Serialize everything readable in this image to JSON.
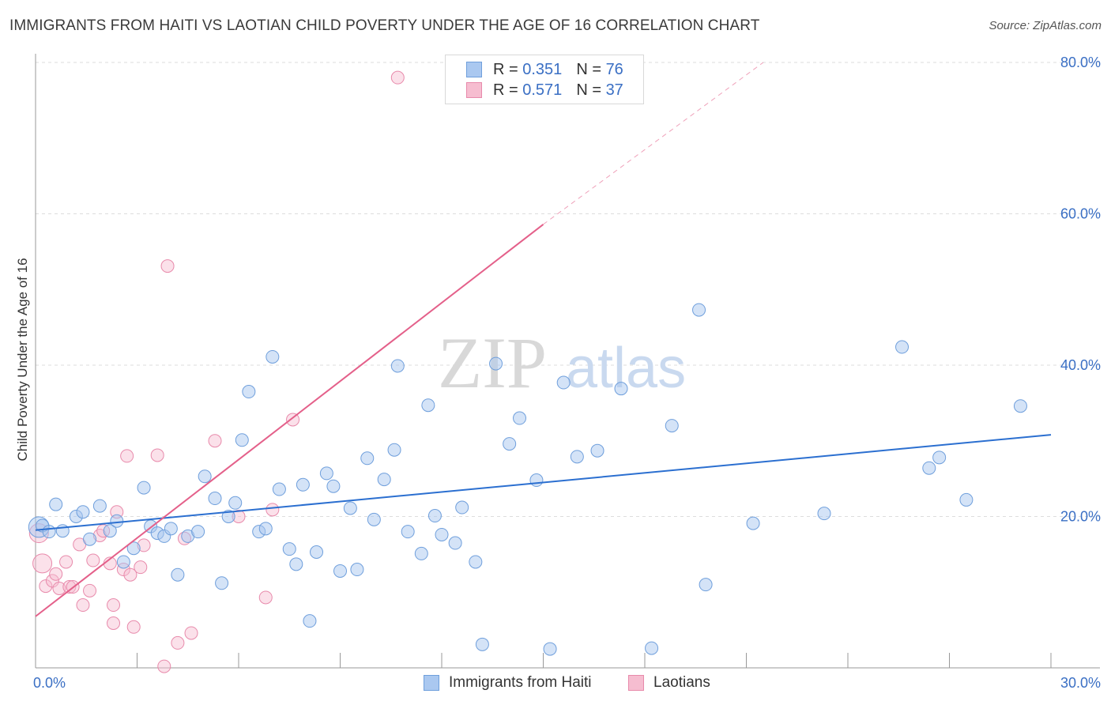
{
  "title": "IMMIGRANTS FROM HAITI VS LAOTIAN CHILD POVERTY UNDER THE AGE OF 16 CORRELATION CHART",
  "source": "Source: ZipAtlas.com",
  "watermark": {
    "zip": "ZIP",
    "atlas": "atlas"
  },
  "colors": {
    "haiti_fill": "#aac8f0",
    "haiti_stroke": "#6f9fdc",
    "haiti_line": "#2b6fd0",
    "laos_fill": "#f6bdd0",
    "laos_stroke": "#e88aab",
    "laos_line": "#e4608a",
    "tick_label": "#3a6fc4",
    "grid": "#dddddd"
  },
  "legend": {
    "haiti": {
      "r_label": "R = ",
      "r_value": "0.351",
      "n_label": "N = ",
      "n_value": "76"
    },
    "laos": {
      "r_label": "R = ",
      "r_value": "0.571",
      "n_label": "N = ",
      "n_value": "37"
    }
  },
  "bottom_legend": {
    "haiti": "Immigrants from Haiti",
    "laos": "Laotians"
  },
  "chart_data": {
    "type": "scatter",
    "title": "IMMIGRANTS FROM HAITI VS LAOTIAN CHILD POVERTY UNDER THE AGE OF 16 CORRELATION CHART",
    "xlabel": "",
    "ylabel": "Child Poverty Under the Age of 16",
    "xlim": [
      0,
      30
    ],
    "ylim": [
      0,
      80
    ],
    "x_tick_labels": [
      "0.0%",
      "30.0%"
    ],
    "y_ticks": [
      20,
      40,
      60,
      80
    ],
    "y_tick_labels": [
      "20.0%",
      "40.0%",
      "60.0%",
      "80.0%"
    ],
    "grid": "horizontal dashed",
    "legend_position": "top-center",
    "series": [
      {
        "name": "Immigrants from Haiti",
        "R": 0.351,
        "N": 76,
        "trend": {
          "x": [
            0,
            30
          ],
          "y": [
            18.2,
            30.8
          ]
        },
        "points": [
          [
            0.1,
            18.6
          ],
          [
            0.2,
            18.8
          ],
          [
            0.4,
            18
          ],
          [
            0.6,
            21.6
          ],
          [
            0.8,
            18.1
          ],
          [
            1.2,
            20
          ],
          [
            1.4,
            20.6
          ],
          [
            1.6,
            17
          ],
          [
            1.9,
            21.4
          ],
          [
            2.2,
            18.1
          ],
          [
            2.4,
            19.4
          ],
          [
            2.6,
            14
          ],
          [
            2.9,
            15.8
          ],
          [
            3.2,
            23.8
          ],
          [
            3.4,
            18.7
          ],
          [
            3.6,
            17.8
          ],
          [
            3.8,
            17.4
          ],
          [
            4,
            18.4
          ],
          [
            4.2,
            12.3
          ],
          [
            4.5,
            17.4
          ],
          [
            4.8,
            18
          ],
          [
            5,
            25.3
          ],
          [
            5.3,
            22.4
          ],
          [
            5.5,
            11.2
          ],
          [
            5.7,
            20
          ],
          [
            5.9,
            21.8
          ],
          [
            6.1,
            30.1
          ],
          [
            6.3,
            36.5
          ],
          [
            6.6,
            18
          ],
          [
            6.8,
            18.4
          ],
          [
            7,
            41.1
          ],
          [
            7.2,
            23.6
          ],
          [
            7.5,
            15.7
          ],
          [
            7.7,
            13.7
          ],
          [
            7.9,
            24.2
          ],
          [
            8.1,
            6.2
          ],
          [
            8.3,
            15.3
          ],
          [
            8.6,
            25.7
          ],
          [
            8.8,
            24
          ],
          [
            9,
            12.8
          ],
          [
            9.3,
            21.1
          ],
          [
            9.5,
            13
          ],
          [
            9.8,
            27.7
          ],
          [
            10,
            19.6
          ],
          [
            10.3,
            24.9
          ],
          [
            10.6,
            28.8
          ],
          [
            10.7,
            39.9
          ],
          [
            11,
            18
          ],
          [
            11.4,
            15.1
          ],
          [
            11.6,
            34.7
          ],
          [
            11.8,
            20.1
          ],
          [
            12,
            17.6
          ],
          [
            12.4,
            16.5
          ],
          [
            12.6,
            21.2
          ],
          [
            13,
            14
          ],
          [
            13.2,
            3.1
          ],
          [
            13.6,
            40.2
          ],
          [
            14,
            29.6
          ],
          [
            14.3,
            33
          ],
          [
            14.8,
            24.8
          ],
          [
            15.2,
            2.5
          ],
          [
            15.6,
            37.7
          ],
          [
            16,
            27.9
          ],
          [
            16.6,
            28.7
          ],
          [
            17.3,
            36.9
          ],
          [
            18.2,
            2.6
          ],
          [
            18.8,
            32
          ],
          [
            19.6,
            47.3
          ],
          [
            19.8,
            11
          ],
          [
            21.2,
            19.1
          ],
          [
            23.3,
            20.4
          ],
          [
            25.6,
            42.4
          ],
          [
            26.4,
            26.4
          ],
          [
            26.7,
            27.8
          ],
          [
            27.5,
            22.2
          ],
          [
            29.1,
            34.6
          ]
        ]
      },
      {
        "name": "Laotians",
        "R": 0.571,
        "N": 37,
        "trend": {
          "x": [
            0,
            15
          ],
          "y": [
            6.8,
            58.6
          ]
        },
        "trend_dashed": {
          "x": [
            15,
            21.5
          ],
          "y": [
            58.6,
            80
          ]
        },
        "points": [
          [
            0.1,
            17.8
          ],
          [
            0.2,
            13.8
          ],
          [
            0.3,
            10.8
          ],
          [
            0.5,
            11.5
          ],
          [
            0.6,
            12.4
          ],
          [
            0.7,
            10.5
          ],
          [
            0.9,
            14
          ],
          [
            1,
            10.7
          ],
          [
            1.1,
            10.7
          ],
          [
            1.3,
            16.3
          ],
          [
            1.4,
            8.3
          ],
          [
            1.6,
            10.2
          ],
          [
            1.7,
            14.2
          ],
          [
            1.9,
            17.5
          ],
          [
            2,
            18.1
          ],
          [
            2.2,
            13.8
          ],
          [
            2.3,
            8.3
          ],
          [
            2.3,
            5.9
          ],
          [
            2.4,
            20.6
          ],
          [
            2.6,
            13
          ],
          [
            2.7,
            28
          ],
          [
            2.8,
            12.3
          ],
          [
            2.9,
            5.4
          ],
          [
            3.1,
            13.3
          ],
          [
            3.2,
            16.2
          ],
          [
            3.6,
            28.1
          ],
          [
            3.8,
            0.2
          ],
          [
            3.9,
            53.1
          ],
          [
            4.2,
            3.3
          ],
          [
            4.4,
            17.1
          ],
          [
            4.6,
            4.6
          ],
          [
            5.3,
            30
          ],
          [
            6,
            20
          ],
          [
            6.8,
            9.3
          ],
          [
            7,
            20.9
          ],
          [
            7.6,
            32.8
          ],
          [
            10.7,
            78
          ]
        ]
      }
    ]
  }
}
